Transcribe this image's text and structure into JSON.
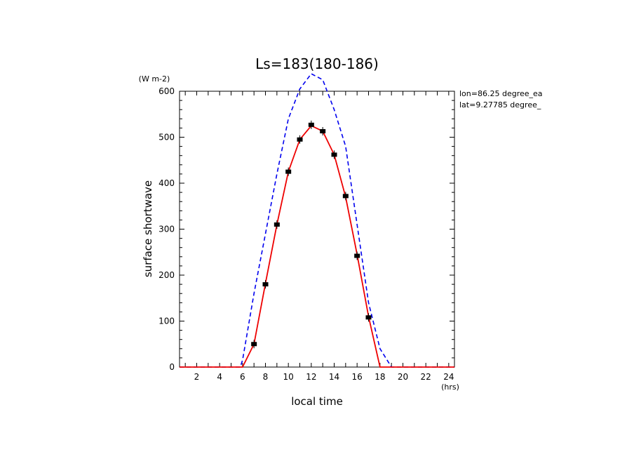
{
  "chart_data": {
    "type": "line",
    "title": "Ls=183(180-186)",
    "xlabel": "local time",
    "ylabel": "surface shortwave",
    "yunit": "(W m-2)",
    "xunit": "(hrs)",
    "annotations": [
      "lon=86.25 degree_ea",
      "lat=9.27785 degree_"
    ],
    "xlim": [
      0.5,
      24.5
    ],
    "ylim": [
      0,
      600
    ],
    "xticks": [
      "2",
      "4",
      "6",
      "8",
      "10",
      "12",
      "14",
      "16",
      "18",
      "20",
      "22",
      "24"
    ],
    "yticks": [
      "0",
      "100",
      "200",
      "300",
      "400",
      "500",
      "600"
    ],
    "grid": false,
    "series": [
      {
        "color": "#0000ee",
        "style": "dashed",
        "x": [
          0.5,
          1,
          2,
          3,
          4,
          5,
          5.8,
          6,
          7,
          8,
          9,
          10,
          11,
          12,
          13,
          14,
          15,
          16,
          17,
          18,
          19,
          20,
          21,
          22,
          23,
          24,
          24.5
        ],
        "y": [
          0,
          0,
          0,
          0,
          0,
          0,
          0,
          15,
          160,
          290,
          420,
          540,
          605,
          638,
          625,
          560,
          480,
          310,
          140,
          40,
          0,
          0,
          0,
          0,
          0,
          0,
          0
        ]
      },
      {
        "color": "#ee0000",
        "style": "solid",
        "x": [
          0.5,
          1,
          2,
          3,
          4,
          5,
          6,
          7,
          8,
          9,
          10,
          11,
          12,
          13,
          14,
          15,
          16,
          17,
          18,
          19,
          20,
          21,
          22,
          23,
          24,
          24.5
        ],
        "y": [
          0,
          0,
          0,
          0,
          0,
          0,
          0,
          50,
          182,
          310,
          425,
          495,
          525,
          513,
          462,
          370,
          245,
          110,
          0,
          0,
          0,
          0,
          0,
          0,
          0,
          0
        ]
      },
      {
        "color": "#000000",
        "style": "markers",
        "x": [
          7,
          8,
          9,
          10,
          11,
          12,
          13,
          14,
          15,
          16,
          17
        ],
        "y": [
          50,
          180,
          310,
          425,
          495,
          527,
          513,
          462,
          372,
          242,
          108
        ]
      }
    ]
  }
}
